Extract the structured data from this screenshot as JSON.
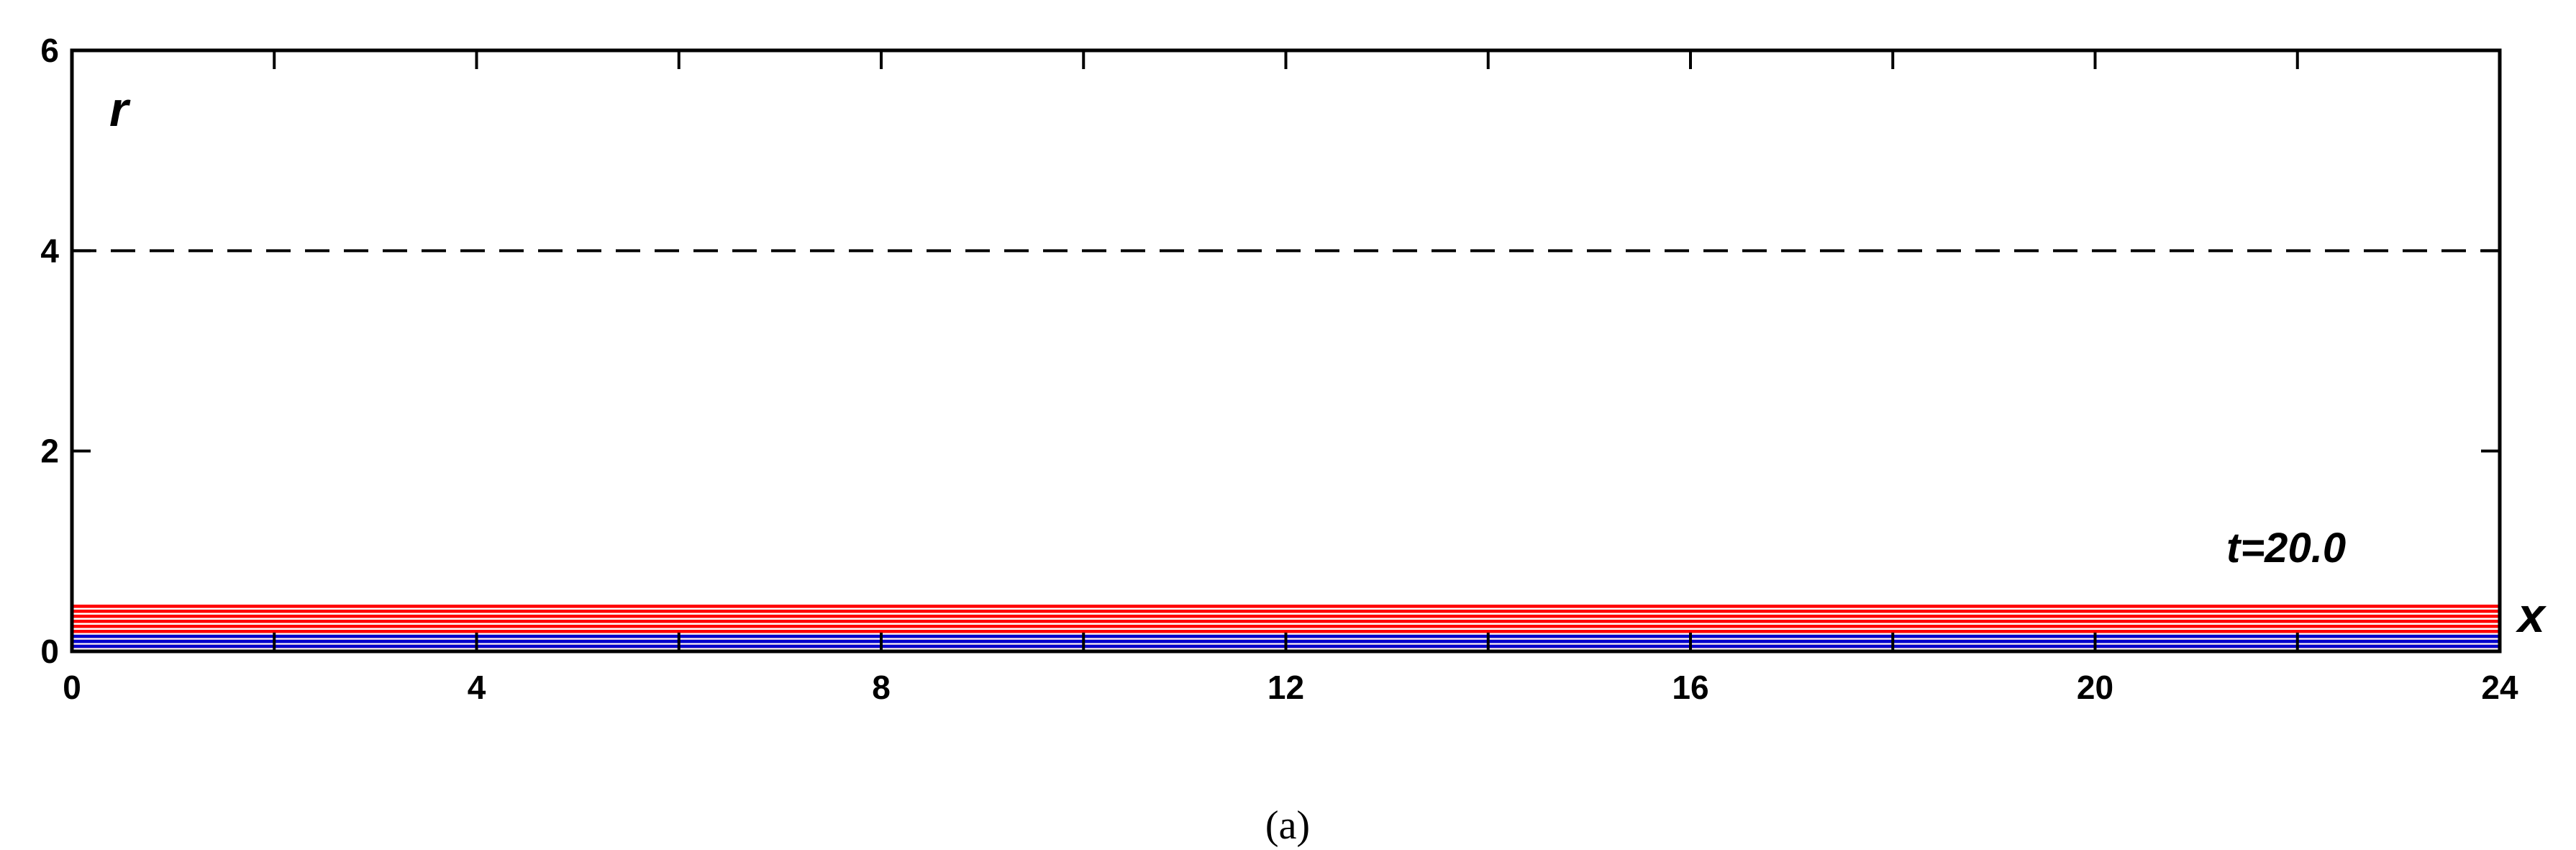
{
  "chart_data": {
    "type": "line",
    "title": "",
    "xlabel": "x",
    "ylabel": "r",
    "xlim": [
      0,
      24
    ],
    "ylim": [
      0,
      6
    ],
    "x_ticks": [
      0,
      4,
      8,
      12,
      16,
      20,
      24
    ],
    "y_ticks": [
      0,
      2,
      4,
      6
    ],
    "grid": false,
    "reference_lines": [
      {
        "orientation": "horizontal",
        "y": 4,
        "style": "dashed"
      }
    ],
    "annotation": "t=20.0",
    "caption": "(a)",
    "colors": {
      "series_a": "#ff0000",
      "series_b": "#0000cc",
      "reference": "#000000"
    },
    "series": [
      {
        "color": "#ff0000",
        "lines": [
          [
            [
              0,
              0.45
            ],
            [
              24,
              0.45
            ]
          ],
          [
            [
              0,
              0.4
            ],
            [
              24,
              0.4
            ]
          ],
          [
            [
              0,
              0.35
            ],
            [
              24,
              0.35
            ]
          ],
          [
            [
              0,
              0.3
            ],
            [
              24,
              0.3
            ]
          ],
          [
            [
              0,
              0.25
            ],
            [
              24,
              0.25
            ]
          ],
          [
            [
              0,
              0.2
            ],
            [
              24,
              0.2
            ]
          ],
          [
            [
              0,
              0.15
            ],
            [
              24,
              0.15
            ]
          ],
          [
            [
              0,
              0.1
            ],
            [
              24,
              0.1
            ]
          ],
          [
            [
              0,
              0.05
            ],
            [
              24,
              0.05
            ]
          ],
          [
            [
              0,
              0
            ],
            [
              24,
              0
            ]
          ],
          [
            [
              0,
              0
            ],
            [
              0,
              0.45
            ]
          ],
          [
            [
              24,
              0
            ],
            [
              24,
              0.45
            ]
          ],
          [
            [
              0,
              0.2
            ],
            [
              24,
              0.2
            ]
          ],
          [
            [
              0,
              0.35
            ],
            [
              24,
              0.35
            ]
          ]
        ]
      },
      {
        "color": "#0000cc",
        "lines": [
          [
            [
              0,
              0.15
            ],
            [
              24,
              0.15
            ]
          ],
          [
            [
              0,
              0.1
            ],
            [
              24,
              0.1
            ]
          ],
          [
            [
              0,
              0.05
            ],
            [
              24,
              0.05
            ]
          ],
          [
            [
              0,
              0
            ],
            [
              24,
              0
            ]
          ],
          [
            [
              0,
              0
            ],
            [
              0,
              0.15
            ]
          ],
          [
            [
              24,
              0
            ],
            [
              24,
              0.15
            ]
          ],
          [
            [
              0,
              0.1
            ],
            [
              24,
              0.1
            ]
          ]
        ]
      }
    ]
  }
}
